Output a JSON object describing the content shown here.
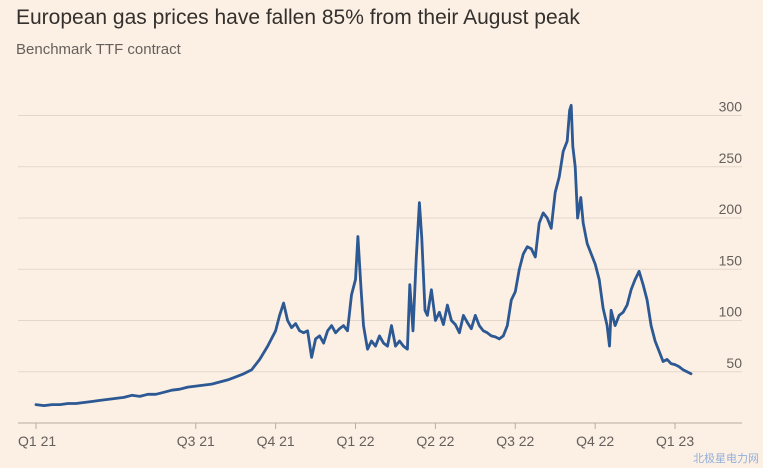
{
  "header": {
    "title": "European gas prices have fallen 85% from their August peak",
    "subtitle": "Benchmark TTF contract"
  },
  "colors": {
    "background": "#fcefe3",
    "line": "#2c5894",
    "grid": "#e3d7cc",
    "tick_text": "#66605c"
  },
  "chart_data": {
    "type": "line",
    "title": "European gas prices have fallen 85% from their August peak",
    "subtitle": "Benchmark TTF contract",
    "xlabel": "",
    "ylabel": "",
    "x_unit": "quarter index (0 = start of Q1 21)",
    "xlim": [
      0,
      8.35
    ],
    "ylim": [
      0,
      320
    ],
    "y_ticks": [
      50,
      100,
      150,
      200,
      250,
      300
    ],
    "y_axis_side": "right",
    "x_tick_labels": [
      {
        "x": 0,
        "label": "Q1 21"
      },
      {
        "x": 2,
        "label": "Q3 21"
      },
      {
        "x": 3,
        "label": "Q4 21"
      },
      {
        "x": 4,
        "label": "Q1 22"
      },
      {
        "x": 5,
        "label": "Q2 22"
      },
      {
        "x": 6,
        "label": "Q3 22"
      },
      {
        "x": 7,
        "label": "Q4 22"
      },
      {
        "x": 8,
        "label": "Q1 23"
      }
    ],
    "grid": "horizontal",
    "series": [
      {
        "name": "",
        "points": [
          [
            0.0,
            18
          ],
          [
            0.1,
            17
          ],
          [
            0.2,
            18
          ],
          [
            0.3,
            18
          ],
          [
            0.4,
            19
          ],
          [
            0.5,
            19
          ],
          [
            0.6,
            20
          ],
          [
            0.7,
            21
          ],
          [
            0.8,
            22
          ],
          [
            0.9,
            23
          ],
          [
            1.0,
            24
          ],
          [
            1.1,
            25
          ],
          [
            1.2,
            27
          ],
          [
            1.3,
            26
          ],
          [
            1.4,
            28
          ],
          [
            1.5,
            28
          ],
          [
            1.6,
            30
          ],
          [
            1.7,
            32
          ],
          [
            1.8,
            33
          ],
          [
            1.9,
            35
          ],
          [
            2.0,
            36
          ],
          [
            2.1,
            37
          ],
          [
            2.2,
            38
          ],
          [
            2.3,
            40
          ],
          [
            2.4,
            42
          ],
          [
            2.5,
            45
          ],
          [
            2.6,
            48
          ],
          [
            2.7,
            52
          ],
          [
            2.8,
            62
          ],
          [
            2.9,
            75
          ],
          [
            3.0,
            90
          ],
          [
            3.05,
            105
          ],
          [
            3.1,
            117
          ],
          [
            3.15,
            100
          ],
          [
            3.2,
            93
          ],
          [
            3.25,
            97
          ],
          [
            3.3,
            90
          ],
          [
            3.35,
            88
          ],
          [
            3.4,
            90
          ],
          [
            3.45,
            64
          ],
          [
            3.5,
            82
          ],
          [
            3.55,
            85
          ],
          [
            3.6,
            78
          ],
          [
            3.65,
            90
          ],
          [
            3.7,
            95
          ],
          [
            3.75,
            88
          ],
          [
            3.8,
            92
          ],
          [
            3.85,
            95
          ],
          [
            3.9,
            90
          ],
          [
            3.95,
            125
          ],
          [
            4.0,
            140
          ],
          [
            4.03,
            182
          ],
          [
            4.07,
            130
          ],
          [
            4.1,
            95
          ],
          [
            4.15,
            72
          ],
          [
            4.2,
            80
          ],
          [
            4.25,
            75
          ],
          [
            4.3,
            85
          ],
          [
            4.35,
            78
          ],
          [
            4.4,
            75
          ],
          [
            4.45,
            95
          ],
          [
            4.5,
            75
          ],
          [
            4.55,
            80
          ],
          [
            4.6,
            75
          ],
          [
            4.65,
            72
          ],
          [
            4.68,
            135
          ],
          [
            4.72,
            90
          ],
          [
            4.76,
            160
          ],
          [
            4.8,
            215
          ],
          [
            4.83,
            180
          ],
          [
            4.87,
            110
          ],
          [
            4.9,
            105
          ],
          [
            4.95,
            130
          ],
          [
            5.0,
            100
          ],
          [
            5.05,
            108
          ],
          [
            5.1,
            96
          ],
          [
            5.15,
            115
          ],
          [
            5.2,
            100
          ],
          [
            5.25,
            96
          ],
          [
            5.3,
            88
          ],
          [
            5.35,
            105
          ],
          [
            5.4,
            98
          ],
          [
            5.45,
            92
          ],
          [
            5.5,
            105
          ],
          [
            5.55,
            95
          ],
          [
            5.6,
            90
          ],
          [
            5.65,
            88
          ],
          [
            5.7,
            85
          ],
          [
            5.75,
            84
          ],
          [
            5.8,
            82
          ],
          [
            5.85,
            85
          ],
          [
            5.9,
            95
          ],
          [
            5.95,
            120
          ],
          [
            6.0,
            128
          ],
          [
            6.05,
            150
          ],
          [
            6.1,
            165
          ],
          [
            6.15,
            172
          ],
          [
            6.2,
            170
          ],
          [
            6.25,
            162
          ],
          [
            6.3,
            195
          ],
          [
            6.35,
            205
          ],
          [
            6.4,
            200
          ],
          [
            6.45,
            190
          ],
          [
            6.5,
            225
          ],
          [
            6.55,
            240
          ],
          [
            6.6,
            265
          ],
          [
            6.65,
            275
          ],
          [
            6.68,
            305
          ],
          [
            6.7,
            310
          ],
          [
            6.72,
            270
          ],
          [
            6.75,
            250
          ],
          [
            6.78,
            200
          ],
          [
            6.82,
            220
          ],
          [
            6.85,
            195
          ],
          [
            6.9,
            175
          ],
          [
            6.95,
            165
          ],
          [
            7.0,
            155
          ],
          [
            7.05,
            140
          ],
          [
            7.1,
            112
          ],
          [
            7.15,
            95
          ],
          [
            7.18,
            75
          ],
          [
            7.2,
            110
          ],
          [
            7.25,
            95
          ],
          [
            7.3,
            105
          ],
          [
            7.35,
            108
          ],
          [
            7.4,
            115
          ],
          [
            7.45,
            130
          ],
          [
            7.5,
            140
          ],
          [
            7.55,
            148
          ],
          [
            7.6,
            135
          ],
          [
            7.65,
            120
          ],
          [
            7.7,
            95
          ],
          [
            7.75,
            80
          ],
          [
            7.8,
            70
          ],
          [
            7.85,
            60
          ],
          [
            7.9,
            62
          ],
          [
            7.95,
            58
          ],
          [
            8.0,
            57
          ],
          [
            8.05,
            55
          ],
          [
            8.1,
            52
          ],
          [
            8.15,
            50
          ],
          [
            8.2,
            48
          ]
        ]
      }
    ]
  },
  "watermark": "北极星电力网"
}
